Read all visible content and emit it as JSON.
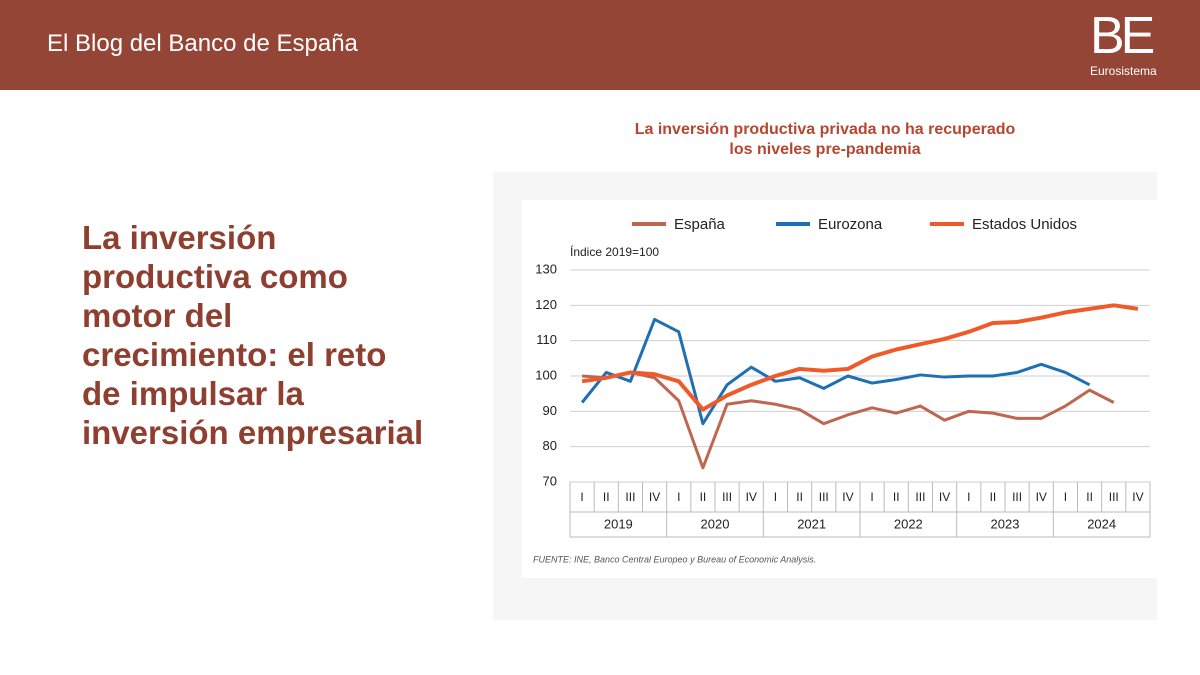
{
  "header": {
    "title": "El Blog del Banco de España",
    "logo": "BE",
    "logo_sub": "Eurosistema"
  },
  "headline_lines": [
    "La inversión",
    "productiva como",
    "motor del",
    "crecimiento: el reto",
    "de impulsar la",
    "inversión empresarial"
  ],
  "chart_data": {
    "type": "line",
    "title_lines": [
      "La inversión productiva privada no ha recuperado",
      "los niveles pre-pandemia"
    ],
    "y_label": "Índice 2019=100",
    "source": "FUENTE: INE, Banco Central Europeo y Bureau of Economic Analysis.",
    "categories": [
      "I",
      "II",
      "III",
      "IV",
      "I",
      "II",
      "III",
      "IV",
      "I",
      "II",
      "III",
      "IV",
      "I",
      "II",
      "III",
      "IV",
      "I",
      "II",
      "III",
      "IV",
      "I",
      "II",
      "III",
      "IV"
    ],
    "years": [
      "2019",
      "2020",
      "2021",
      "2022",
      "2023",
      "2024"
    ],
    "series": [
      {
        "name": "España",
        "color": "#bf6650",
        "values": [
          100,
          99.5,
          101,
          99.5,
          93,
          74,
          92,
          93,
          92,
          90.5,
          86.5,
          89,
          91,
          89.5,
          91.5,
          87.5,
          90,
          89.5,
          88,
          88,
          91.5,
          96,
          92.5,
          null
        ]
      },
      {
        "name": "Eurozona",
        "color": "#1f6fb5",
        "values": [
          92.5,
          101,
          98.5,
          116,
          112.5,
          86.5,
          97.5,
          102.5,
          98.5,
          99.5,
          96.5,
          100,
          98,
          99,
          100.3,
          99.7,
          100,
          100,
          101,
          103.3,
          101,
          97.5,
          null,
          null
        ]
      },
      {
        "name": "Estados Unidos",
        "color": "#f05a28",
        "values": [
          98.5,
          99.5,
          101,
          100.5,
          98.5,
          90.5,
          94.5,
          97.5,
          100,
          102,
          101.5,
          102,
          105.5,
          107.5,
          109,
          110.5,
          112.5,
          115,
          115.3,
          116.5,
          118,
          119,
          120,
          119
        ]
      }
    ],
    "ylim": [
      70,
      130
    ],
    "yticks": [
      70,
      80,
      90,
      100,
      110,
      120,
      130
    ],
    "grid": true
  }
}
